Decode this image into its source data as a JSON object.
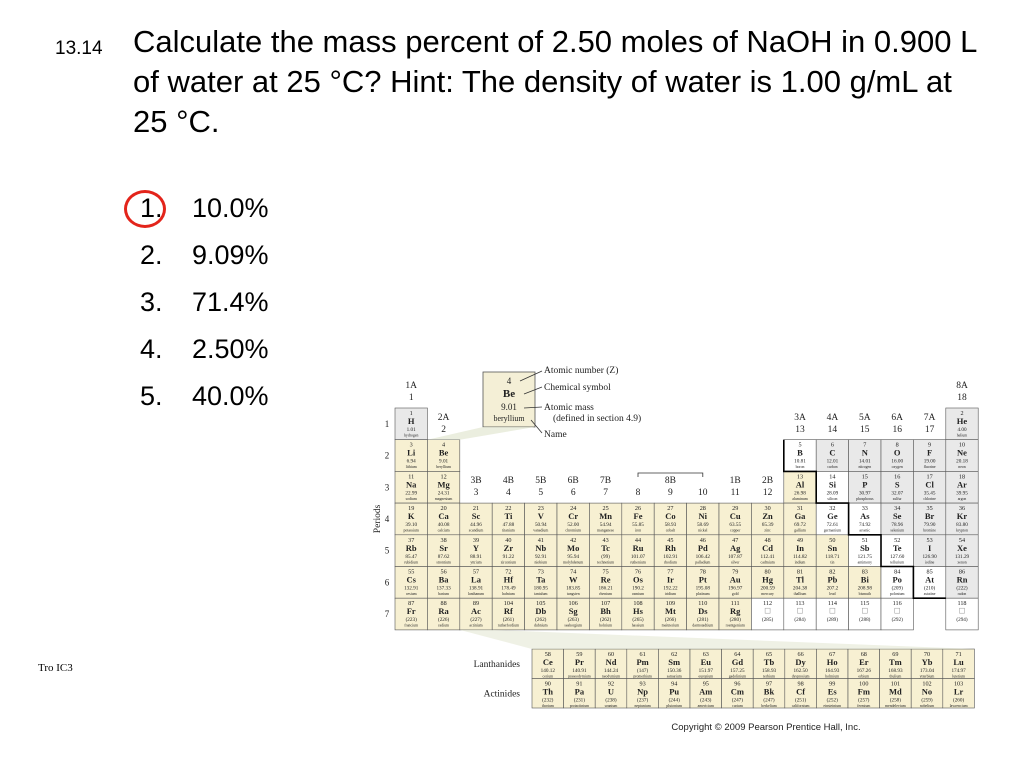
{
  "slide": {
    "number": "13.14",
    "question": "Calculate the mass percent of 2.50 moles of NaOH in 0.900 L of water at 25 °C?  Hint: The density of water is 1.00 g/mL at 25 °C.",
    "answers": [
      {
        "num": "1.",
        "text": "10.0%",
        "circled": true
      },
      {
        "num": "2.",
        "text": "9.09%"
      },
      {
        "num": "3.",
        "text": "71.4%"
      },
      {
        "num": "4.",
        "text": "2.50%"
      },
      {
        "num": "5.",
        "text": "40.0%"
      }
    ],
    "footer": "Tro IC3",
    "circle_color": "#e3241b"
  },
  "ptable": {
    "legend": {
      "number": "4",
      "symbol": "Be",
      "mass": "9.01",
      "name": "beryllium",
      "label_number": "Atomic number (Z)",
      "label_symbol": "Chemical symbol",
      "label_mass": "Atomic mass",
      "label_mass_note": "(defined in section 4.9)",
      "label_name": "Name"
    },
    "periods_label": "Periods",
    "periods": [
      "1",
      "2",
      "3",
      "4",
      "5",
      "6",
      "7"
    ],
    "lanthanides_label": "Lanthanides",
    "actinides_label": "Actinides",
    "copyright": "Copyright © 2009 Pearson Prentice Hall, Inc.",
    "groups": [
      {
        "col": 1,
        "a": "1A",
        "b": "1"
      },
      {
        "col": 2,
        "a": "2A",
        "b": "2"
      },
      {
        "col": 3,
        "a": "3B",
        "b": "3"
      },
      {
        "col": 4,
        "a": "4B",
        "b": "4"
      },
      {
        "col": 5,
        "a": "5B",
        "b": "5"
      },
      {
        "col": 6,
        "a": "6B",
        "b": "6"
      },
      {
        "col": 7,
        "a": "7B",
        "b": "7"
      },
      {
        "col": 8,
        "a": "",
        "b": "8"
      },
      {
        "col": 9,
        "a": "8B",
        "b": "9"
      },
      {
        "col": 10,
        "a": "",
        "b": "10"
      },
      {
        "col": 11,
        "a": "1B",
        "b": "11"
      },
      {
        "col": 12,
        "a": "2B",
        "b": "12"
      },
      {
        "col": 13,
        "a": "3A",
        "b": "13"
      },
      {
        "col": 14,
        "a": "4A",
        "b": "14"
      },
      {
        "col": 15,
        "a": "5A",
        "b": "15"
      },
      {
        "col": 16,
        "a": "6A",
        "b": "16"
      },
      {
        "col": 17,
        "a": "7A",
        "b": "17"
      },
      {
        "col": 18,
        "a": "8A",
        "b": "18"
      }
    ],
    "elements": [
      [
        1,
        1,
        1,
        "H",
        "1.01",
        "hydrogen"
      ],
      [
        18,
        1,
        2,
        "He",
        "4.00",
        "helium"
      ],
      [
        1,
        2,
        3,
        "Li",
        "6.94",
        "lithium"
      ],
      [
        2,
        2,
        4,
        "Be",
        "9.01",
        "beryllium"
      ],
      [
        13,
        2,
        5,
        "B",
        "10.81",
        "boron"
      ],
      [
        14,
        2,
        6,
        "C",
        "12.01",
        "carbon"
      ],
      [
        15,
        2,
        7,
        "N",
        "14.01",
        "nitrogen"
      ],
      [
        16,
        2,
        8,
        "O",
        "16.00",
        "oxygen"
      ],
      [
        17,
        2,
        9,
        "F",
        "19.00",
        "fluorine"
      ],
      [
        18,
        2,
        10,
        "Ne",
        "20.18",
        "neon"
      ],
      [
        1,
        3,
        11,
        "Na",
        "22.99",
        "sodium"
      ],
      [
        2,
        3,
        12,
        "Mg",
        "24.31",
        "magnesium"
      ],
      [
        13,
        3,
        13,
        "Al",
        "26.98",
        "aluminum"
      ],
      [
        14,
        3,
        14,
        "Si",
        "28.09",
        "silicon"
      ],
      [
        15,
        3,
        15,
        "P",
        "30.97",
        "phosphorus"
      ],
      [
        16,
        3,
        16,
        "S",
        "32.07",
        "sulfur"
      ],
      [
        17,
        3,
        17,
        "Cl",
        "35.45",
        "chlorine"
      ],
      [
        18,
        3,
        18,
        "Ar",
        "39.95",
        "argon"
      ],
      [
        1,
        4,
        19,
        "K",
        "39.10",
        "potassium"
      ],
      [
        2,
        4,
        20,
        "Ca",
        "40.08",
        "calcium"
      ],
      [
        3,
        4,
        21,
        "Sc",
        "44.96",
        "scandium"
      ],
      [
        4,
        4,
        22,
        "Ti",
        "47.88",
        "titanium"
      ],
      [
        5,
        4,
        23,
        "V",
        "50.94",
        "vanadium"
      ],
      [
        6,
        4,
        24,
        "Cr",
        "52.00",
        "chromium"
      ],
      [
        7,
        4,
        25,
        "Mn",
        "54.94",
        "manganese"
      ],
      [
        8,
        4,
        26,
        "Fe",
        "55.85",
        "iron"
      ],
      [
        9,
        4,
        27,
        "Co",
        "58.93",
        "cobalt"
      ],
      [
        10,
        4,
        28,
        "Ni",
        "58.69",
        "nickel"
      ],
      [
        11,
        4,
        29,
        "Cu",
        "63.55",
        "copper"
      ],
      [
        12,
        4,
        30,
        "Zn",
        "65.39",
        "zinc"
      ],
      [
        13,
        4,
        31,
        "Ga",
        "69.72",
        "gallium"
      ],
      [
        14,
        4,
        32,
        "Ge",
        "72.61",
        "germanium"
      ],
      [
        15,
        4,
        33,
        "As",
        "74.92",
        "arsenic"
      ],
      [
        16,
        4,
        34,
        "Se",
        "78.96",
        "selenium"
      ],
      [
        17,
        4,
        35,
        "Br",
        "79.90",
        "bromine"
      ],
      [
        18,
        4,
        36,
        "Kr",
        "83.80",
        "krypton"
      ],
      [
        1,
        5,
        37,
        "Rb",
        "85.47",
        "rubidium"
      ],
      [
        2,
        5,
        38,
        "Sr",
        "87.62",
        "strontium"
      ],
      [
        3,
        5,
        39,
        "Y",
        "88.91",
        "yttrium"
      ],
      [
        4,
        5,
        40,
        "Zr",
        "91.22",
        "zirconium"
      ],
      [
        5,
        5,
        41,
        "Nb",
        "92.91",
        "niobium"
      ],
      [
        6,
        5,
        42,
        "Mo",
        "95.94",
        "molybdenum"
      ],
      [
        7,
        5,
        43,
        "Tc",
        "(99)",
        "technetium"
      ],
      [
        8,
        5,
        44,
        "Ru",
        "101.07",
        "ruthenium"
      ],
      [
        9,
        5,
        45,
        "Rh",
        "102.91",
        "rhodium"
      ],
      [
        10,
        5,
        46,
        "Pd",
        "106.42",
        "palladium"
      ],
      [
        11,
        5,
        47,
        "Ag",
        "107.87",
        "silver"
      ],
      [
        12,
        5,
        48,
        "Cd",
        "112.41",
        "cadmium"
      ],
      [
        13,
        5,
        49,
        "In",
        "114.82",
        "indium"
      ],
      [
        14,
        5,
        50,
        "Sn",
        "118.71",
        "tin"
      ],
      [
        15,
        5,
        51,
        "Sb",
        "121.75",
        "antimony"
      ],
      [
        16,
        5,
        52,
        "Te",
        "127.60",
        "tellurium"
      ],
      [
        17,
        5,
        53,
        "I",
        "126.90",
        "iodine"
      ],
      [
        18,
        5,
        54,
        "Xe",
        "131.29",
        "xenon"
      ],
      [
        1,
        6,
        55,
        "Cs",
        "132.91",
        "cesium"
      ],
      [
        2,
        6,
        56,
        "Ba",
        "137.33",
        "barium"
      ],
      [
        3,
        6,
        57,
        "La",
        "138.91",
        "lanthanum"
      ],
      [
        4,
        6,
        72,
        "Hf",
        "178.49",
        "hafnium"
      ],
      [
        5,
        6,
        73,
        "Ta",
        "180.95",
        "tantalum"
      ],
      [
        6,
        6,
        74,
        "W",
        "183.85",
        "tungsten"
      ],
      [
        7,
        6,
        75,
        "Re",
        "186.21",
        "rhenium"
      ],
      [
        8,
        6,
        76,
        "Os",
        "190.2",
        "osmium"
      ],
      [
        9,
        6,
        77,
        "Ir",
        "192.22",
        "iridium"
      ],
      [
        10,
        6,
        78,
        "Pt",
        "195.08",
        "platinum"
      ],
      [
        11,
        6,
        79,
        "Au",
        "196.97",
        "gold"
      ],
      [
        12,
        6,
        80,
        "Hg",
        "200.59",
        "mercury"
      ],
      [
        13,
        6,
        81,
        "Tl",
        "204.38",
        "thallium"
      ],
      [
        14,
        6,
        82,
        "Pb",
        "207.2",
        "lead"
      ],
      [
        15,
        6,
        83,
        "Bi",
        "208.98",
        "bismuth"
      ],
      [
        16,
        6,
        84,
        "Po",
        "(209)",
        "polonium"
      ],
      [
        17,
        6,
        85,
        "At",
        "(210)",
        "astatine"
      ],
      [
        18,
        6,
        86,
        "Rn",
        "(222)",
        "radon"
      ],
      [
        1,
        7,
        87,
        "Fr",
        "(223)",
        "francium"
      ],
      [
        2,
        7,
        88,
        "Ra",
        "(226)",
        "radium"
      ],
      [
        3,
        7,
        89,
        "Ac",
        "(227)",
        "actinium"
      ],
      [
        4,
        7,
        104,
        "Rf",
        "(261)",
        "rutherfordium"
      ],
      [
        5,
        7,
        105,
        "Db",
        "(262)",
        "dubnium"
      ],
      [
        6,
        7,
        106,
        "Sg",
        "(263)",
        "seaborgium"
      ],
      [
        7,
        7,
        107,
        "Bh",
        "(262)",
        "bohrium"
      ],
      [
        8,
        7,
        108,
        "Hs",
        "(265)",
        "hassium"
      ],
      [
        9,
        7,
        109,
        "Mt",
        "(266)",
        "meitnerium"
      ],
      [
        10,
        7,
        110,
        "Ds",
        "(281)",
        "darmstadtium"
      ],
      [
        11,
        7,
        111,
        "Rg",
        "(280)",
        "roentgenium"
      ],
      [
        12,
        7,
        112,
        "",
        "(285)",
        ""
      ],
      [
        13,
        7,
        113,
        "",
        "(284)",
        ""
      ],
      [
        14,
        7,
        114,
        "",
        "(289)",
        ""
      ],
      [
        15,
        7,
        115,
        "",
        "(288)",
        ""
      ],
      [
        16,
        7,
        116,
        "",
        "(292)",
        ""
      ],
      [
        18,
        7,
        118,
        "",
        "(294)",
        ""
      ]
    ],
    "lanthanides": [
      [
        58,
        "Ce",
        "140.12",
        "cerium"
      ],
      [
        59,
        "Pr",
        "140.91",
        "praseodymium"
      ],
      [
        60,
        "Nd",
        "144.24",
        "neodymium"
      ],
      [
        61,
        "Pm",
        "(147)",
        "promethium"
      ],
      [
        62,
        "Sm",
        "150.36",
        "samarium"
      ],
      [
        63,
        "Eu",
        "151.97",
        "europium"
      ],
      [
        64,
        "Gd",
        "157.25",
        "gadolinium"
      ],
      [
        65,
        "Tb",
        "158.93",
        "terbium"
      ],
      [
        66,
        "Dy",
        "162.50",
        "dysprosium"
      ],
      [
        67,
        "Ho",
        "164.93",
        "holmium"
      ],
      [
        68,
        "Er",
        "167.26",
        "erbium"
      ],
      [
        69,
        "Tm",
        "168.93",
        "thulium"
      ],
      [
        70,
        "Yb",
        "173.04",
        "ytterbium"
      ],
      [
        71,
        "Lu",
        "174.97",
        "lutetium"
      ]
    ],
    "actinides": [
      [
        90,
        "Th",
        "(232)",
        "thorium"
      ],
      [
        91,
        "Pa",
        "(231)",
        "protactinium"
      ],
      [
        92,
        "U",
        "(238)",
        "uranium"
      ],
      [
        93,
        "Np",
        "(237)",
        "neptunium"
      ],
      [
        94,
        "Pu",
        "(244)",
        "plutonium"
      ],
      [
        95,
        "Am",
        "(243)",
        "americium"
      ],
      [
        96,
        "Cm",
        "(247)",
        "curium"
      ],
      [
        97,
        "Bk",
        "(247)",
        "berkelium"
      ],
      [
        98,
        "Cf",
        "(251)",
        "californium"
      ],
      [
        99,
        "Es",
        "(252)",
        "einsteinium"
      ],
      [
        100,
        "Fm",
        "(257)",
        "fermium"
      ],
      [
        101,
        "Md",
        "(258)",
        "mendelevium"
      ],
      [
        102,
        "No",
        "(259)",
        "nobelium"
      ],
      [
        103,
        "Lr",
        "(260)",
        "lawrencium"
      ]
    ],
    "colors": {
      "metal": "#f7f0d2",
      "metalloid": "#ffffff",
      "nonmetal": "#e9e9e9",
      "legend_box": "#f4efd6",
      "callout": "#e4e8d4"
    },
    "nonmetals": [
      "H",
      "He",
      "C",
      "N",
      "O",
      "F",
      "Ne",
      "P",
      "S",
      "Cl",
      "Ar",
      "Se",
      "Br",
      "Kr",
      "I",
      "Xe",
      "Rn"
    ],
    "metalloids": [
      "B",
      "Si",
      "Ge",
      "As",
      "Sb",
      "Te",
      "Po",
      "At"
    ]
  }
}
